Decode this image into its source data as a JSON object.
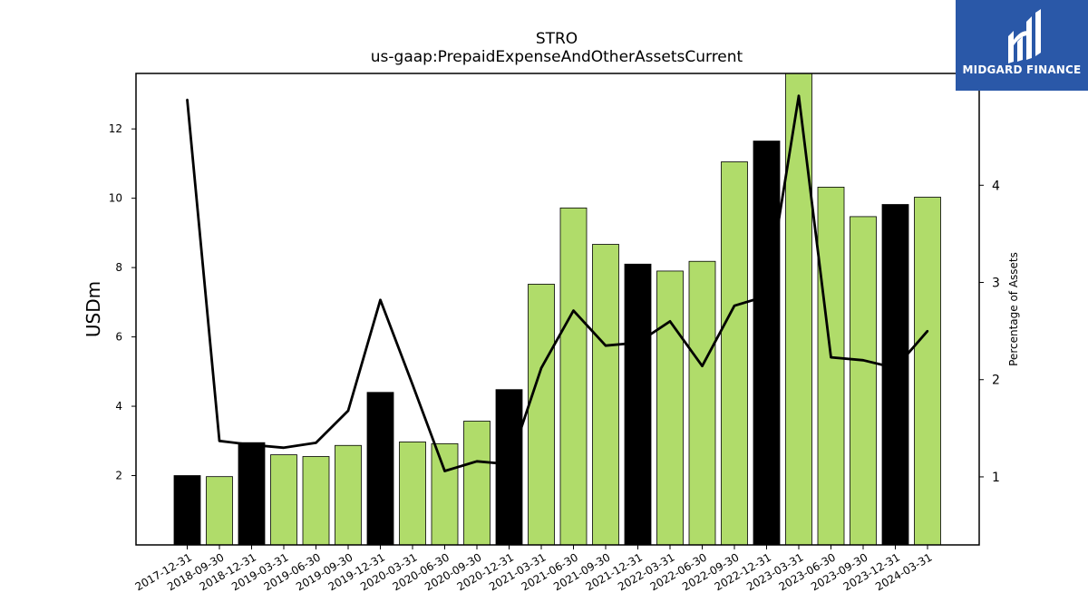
{
  "logo": {
    "text": "MIDGARD FINANCE",
    "background": "#2a58a8"
  },
  "chart_data": {
    "type": "bar",
    "title": "STRO",
    "subtitle": "us-gaap:PrepaidExpenseAndOtherAssetsCurrent",
    "ylabel": "USDm",
    "y2label": "Percentage of Assets",
    "ylim": [
      0,
      13.6
    ],
    "y2lim": [
      0.3,
      5.15
    ],
    "yticks": [
      2,
      4,
      6,
      8,
      10,
      12
    ],
    "y2ticks": [
      1,
      2,
      3,
      4
    ],
    "colors": {
      "annual": "#000000",
      "quarterly": "#b0dc6a",
      "line": "#000000"
    },
    "categories": [
      "2017-12-31",
      "2018-09-30",
      "2018-12-31",
      "2019-03-31",
      "2019-06-30",
      "2019-09-30",
      "2019-12-31",
      "2020-03-31",
      "2020-06-30",
      "2020-09-30",
      "2020-12-31",
      "2021-03-31",
      "2021-06-30",
      "2021-09-30",
      "2021-12-31",
      "2022-03-31",
      "2022-06-30",
      "2022-09-30",
      "2022-12-31",
      "2023-03-31",
      "2023-06-30",
      "2023-09-30",
      "2023-12-31",
      "2024-03-31"
    ],
    "values": [
      2.0,
      1.97,
      2.95,
      2.6,
      2.55,
      2.87,
      4.4,
      2.97,
      2.92,
      3.57,
      4.48,
      7.52,
      9.72,
      8.67,
      8.1,
      7.9,
      8.18,
      11.05,
      11.65,
      13.7,
      10.32,
      9.47,
      9.82,
      10.03
    ],
    "bar_kind": [
      "annual",
      "quarterly",
      "annual",
      "quarterly",
      "quarterly",
      "quarterly",
      "annual",
      "quarterly",
      "quarterly",
      "quarterly",
      "annual",
      "quarterly",
      "quarterly",
      "quarterly",
      "annual",
      "quarterly",
      "quarterly",
      "quarterly",
      "annual",
      "quarterly",
      "quarterly",
      "quarterly",
      "annual",
      "quarterly"
    ],
    "series": [
      {
        "values": [
          4.88,
          1.37,
          1.33,
          1.3,
          1.35,
          1.68,
          2.82,
          1.95,
          1.06,
          1.16,
          1.13,
          2.12,
          2.71,
          2.35,
          2.38,
          2.6,
          2.14,
          2.76,
          2.86,
          4.92,
          2.23,
          2.2,
          2.12,
          2.5
        ]
      }
    ],
    "grid": false,
    "legend": "none"
  }
}
